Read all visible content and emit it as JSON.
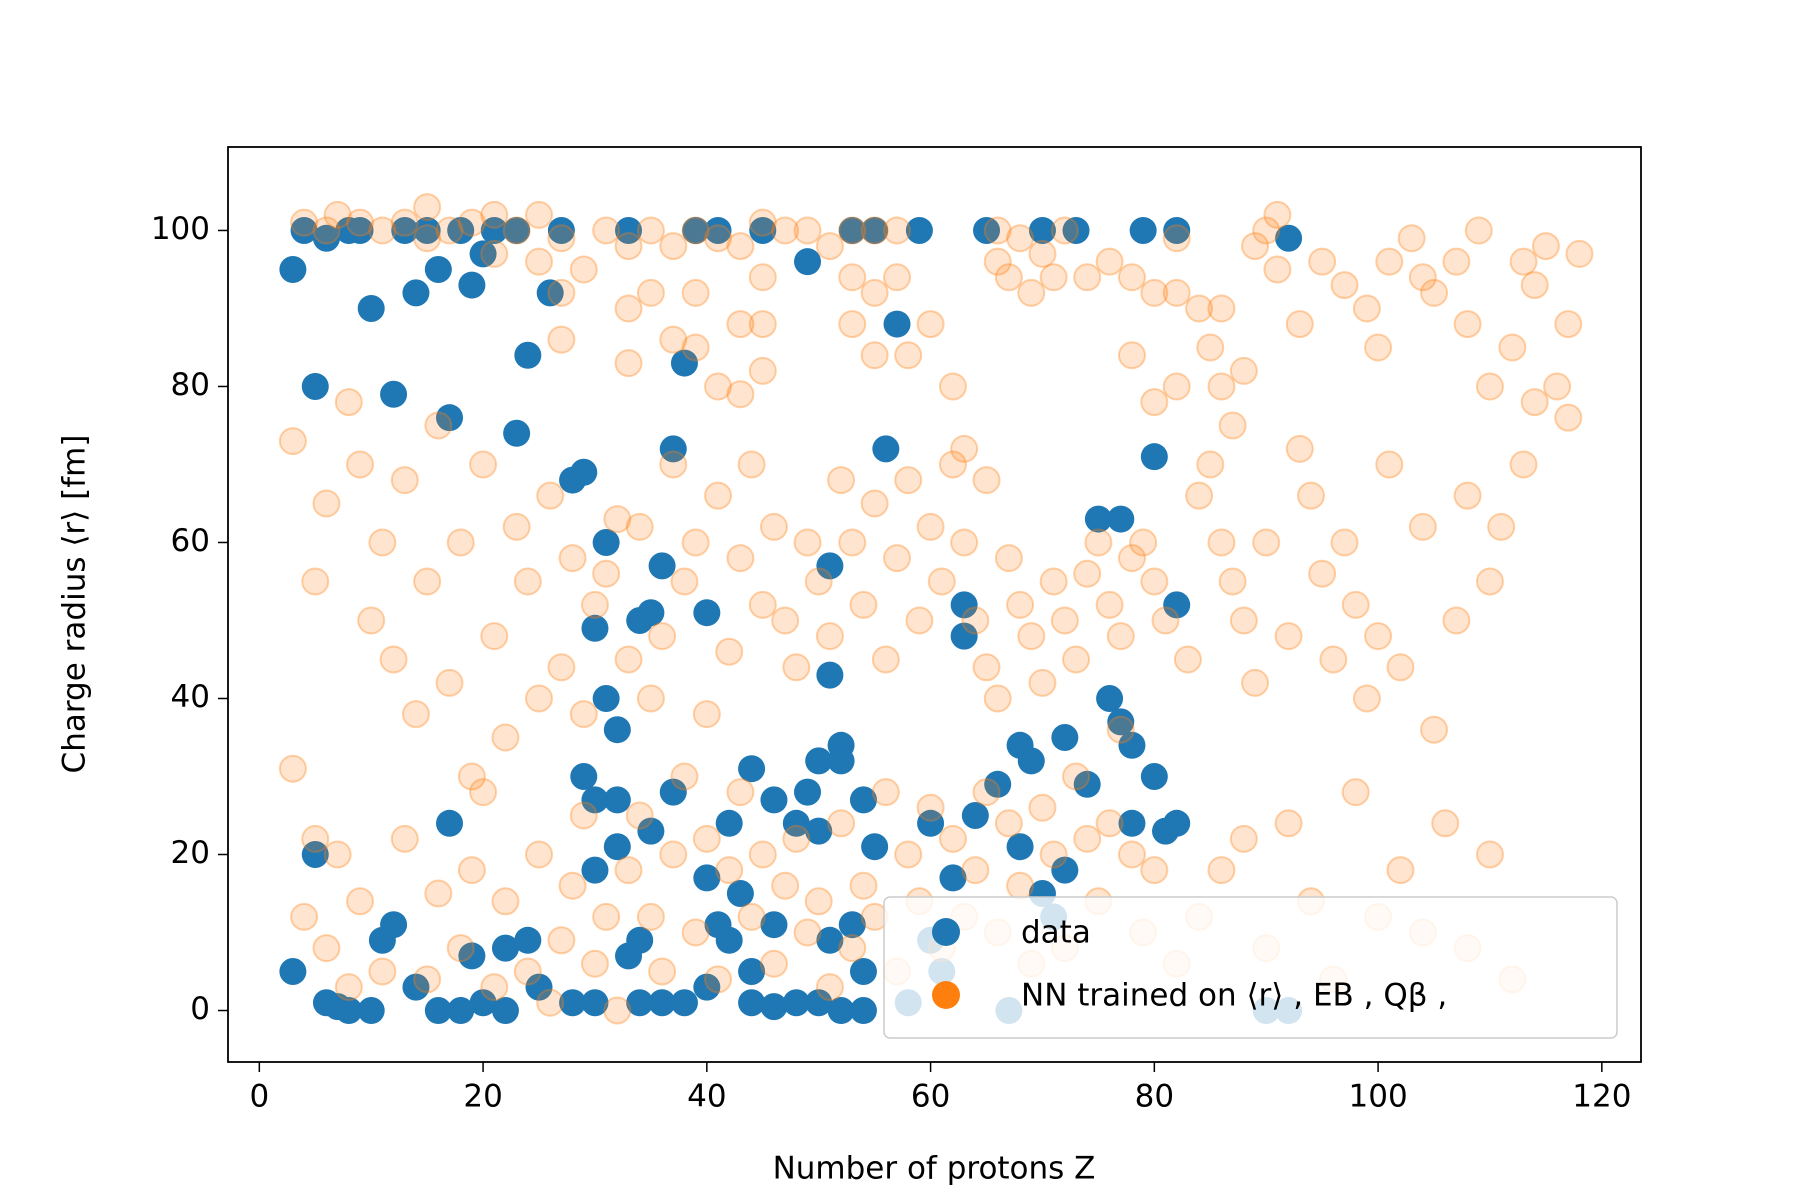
{
  "chart_data": {
    "type": "scatter",
    "xlabel": "Number of protons Z",
    "ylabel": "Charge radius ⟨r⟩ [fm]",
    "xlim": [
      -2.8,
      123.5
    ],
    "ylim": [
      -6.6,
      110.7
    ],
    "xticks": [
      0,
      20,
      40,
      60,
      80,
      100,
      120
    ],
    "yticks": [
      0,
      20,
      40,
      60,
      80,
      100
    ],
    "legend": "lower right",
    "series": [
      {
        "name": "data",
        "color": "#1f77b4",
        "x": [
          3,
          4,
          5,
          5,
          3,
          6,
          6,
          7,
          8,
          8,
          9,
          10,
          10,
          11,
          12,
          12,
          13,
          14,
          14,
          15,
          16,
          16,
          17,
          17,
          18,
          18,
          19,
          19,
          20,
          20,
          21,
          22,
          22,
          23,
          23,
          24,
          24,
          25,
          26,
          27,
          28,
          28,
          29,
          29,
          30,
          30,
          30,
          30,
          31,
          31,
          32,
          32,
          32,
          33,
          33,
          34,
          34,
          34,
          35,
          35,
          36,
          36,
          37,
          37,
          38,
          38,
          39,
          40,
          40,
          40,
          41,
          41,
          42,
          42,
          43,
          44,
          44,
          44,
          45,
          46,
          46,
          46,
          48,
          48,
          49,
          49,
          50,
          50,
          50,
          51,
          51,
          51,
          52,
          52,
          52,
          53,
          53,
          54,
          54,
          54,
          55,
          55,
          56,
          57,
          58,
          59,
          60,
          60,
          61,
          62,
          63,
          63,
          64,
          65,
          66,
          67,
          68,
          68,
          69,
          70,
          70,
          71,
          72,
          72,
          73,
          74,
          75,
          76,
          77,
          77,
          78,
          78,
          79,
          80,
          80,
          81,
          82,
          82,
          82,
          90,
          92,
          92
        ],
        "values": [
          95,
          100,
          80,
          20,
          5,
          1,
          99,
          0.5,
          0,
          100,
          100,
          90,
          0,
          9,
          79,
          11,
          100,
          92,
          3,
          100,
          95,
          0,
          76,
          24,
          100,
          0,
          93,
          7,
          97,
          1,
          100,
          0,
          8,
          74,
          100,
          84,
          9,
          3,
          92,
          100,
          68,
          1,
          69,
          30,
          49,
          27,
          18,
          1,
          60,
          40,
          36,
          27,
          21,
          100,
          7,
          50,
          9,
          1,
          51,
          23,
          57,
          1,
          72,
          28,
          83,
          1,
          100,
          51,
          17,
          3,
          100,
          11,
          24,
          9,
          15,
          1,
          31,
          5,
          100,
          27,
          11,
          0.5,
          1,
          24,
          96,
          28,
          32,
          23,
          1,
          57,
          43,
          9,
          34,
          32,
          0,
          100,
          11,
          27,
          5,
          0,
          100,
          21,
          72,
          88,
          1,
          100,
          24,
          9,
          5,
          17,
          52,
          48,
          25,
          100,
          29,
          0,
          34,
          21,
          32,
          100,
          15,
          12,
          35,
          18,
          100,
          29,
          63,
          40,
          63,
          37,
          34,
          24,
          100,
          30,
          71,
          23,
          52,
          24,
          100,
          0,
          99,
          0
        ]
      },
      {
        "name": "NN trained on ⟨r⟩ , EB , Qβ ,",
        "color": "#ff7f0e",
        "x": [
          4,
          6,
          7,
          9,
          11,
          13,
          15,
          15,
          17,
          19,
          21,
          21,
          23,
          25,
          25,
          27,
          27,
          27,
          29,
          31,
          33,
          33,
          33,
          35,
          35,
          37,
          37,
          39,
          39,
          39,
          41,
          41,
          43,
          43,
          43,
          45,
          45,
          45,
          45,
          47,
          49,
          51,
          53,
          53,
          53,
          55,
          55,
          55,
          57,
          57,
          58,
          60,
          62,
          63,
          65,
          66,
          66,
          67,
          68,
          69,
          70,
          71,
          72,
          74,
          76,
          78,
          78,
          80,
          80,
          82,
          82,
          82,
          84,
          85,
          86,
          86,
          87,
          88,
          89,
          90,
          91,
          91,
          93,
          95,
          97,
          99,
          100,
          101,
          103,
          104,
          105,
          107,
          108,
          109,
          110,
          112,
          113,
          114,
          115,
          117,
          118,
          3,
          5,
          6,
          8,
          9,
          10,
          11,
          12,
          13,
          14,
          15,
          16,
          17,
          18,
          19,
          20,
          21,
          22,
          23,
          24,
          25,
          26,
          27,
          28,
          29,
          30,
          31,
          32,
          33,
          34,
          35,
          36,
          37,
          38,
          39,
          40,
          41,
          42,
          43,
          44,
          45,
          46,
          47,
          48,
          49,
          50,
          51,
          52,
          53,
          54,
          55,
          56,
          57,
          58,
          59,
          60,
          61,
          62,
          63,
          64,
          65,
          66,
          67,
          68,
          69,
          70,
          71,
          72,
          73,
          74,
          75,
          76,
          77,
          78,
          79,
          80,
          81,
          83,
          84,
          85,
          86,
          87,
          88,
          89,
          90,
          92,
          93,
          94,
          95,
          96,
          97,
          98,
          99,
          100,
          101,
          102,
          104,
          105,
          107,
          108,
          110,
          111,
          113,
          114,
          116,
          117,
          3,
          4,
          5,
          6,
          7,
          8,
          9,
          11,
          13,
          15,
          16,
          18,
          19,
          20,
          21,
          22,
          24,
          25,
          26,
          27,
          28,
          29,
          30,
          31,
          32,
          33,
          34,
          35,
          36,
          37,
          38,
          39,
          40,
          41,
          42,
          43,
          44,
          45,
          46,
          47,
          48,
          49,
          50,
          51,
          52,
          53,
          54,
          55,
          56,
          57,
          58,
          59,
          60,
          61,
          62,
          63,
          64,
          65,
          66,
          67,
          68,
          69,
          70,
          71,
          72,
          73,
          74,
          75,
          76,
          77,
          78,
          79,
          80,
          82,
          84,
          86,
          88,
          90,
          92,
          94,
          96,
          98,
          100,
          102,
          104,
          106,
          108,
          110,
          112
        ],
        "values": [
          101,
          100,
          102,
          101,
          100,
          101,
          103,
          99,
          100,
          101,
          102,
          97,
          100,
          102,
          96,
          99,
          92,
          86,
          95,
          100,
          98,
          90,
          83,
          100,
          92,
          98,
          86,
          100,
          92,
          85,
          99,
          80,
          98,
          88,
          79,
          101,
          94,
          88,
          82,
          100,
          100,
          98,
          100,
          94,
          88,
          100,
          92,
          84,
          100,
          94,
          84,
          88,
          80,
          72,
          68,
          100,
          96,
          94,
          99,
          92,
          97,
          94,
          100,
          94,
          96,
          94,
          84,
          92,
          78,
          99,
          92,
          80,
          90,
          85,
          80,
          90,
          75,
          82,
          98,
          100,
          102,
          95,
          88,
          96,
          93,
          90,
          85,
          96,
          99,
          94,
          92,
          96,
          88,
          100,
          80,
          85,
          96,
          93,
          98,
          88,
          97,
          73,
          55,
          65,
          78,
          70,
          50,
          60,
          45,
          68,
          38,
          55,
          75,
          42,
          60,
          30,
          70,
          48,
          35,
          62,
          55,
          40,
          66,
          44,
          58,
          38,
          52,
          56,
          63,
          45,
          62,
          40,
          48,
          70,
          55,
          60,
          38,
          66,
          46,
          58,
          70,
          52,
          62,
          50,
          44,
          60,
          55,
          48,
          68,
          60,
          52,
          65,
          45,
          58,
          68,
          50,
          62,
          55,
          70,
          60,
          50,
          44,
          40,
          58,
          52,
          48,
          42,
          55,
          50,
          45,
          56,
          60,
          52,
          48,
          58,
          60,
          55,
          50,
          45,
          66,
          70,
          60,
          55,
          50,
          42,
          60,
          48,
          72,
          66,
          56,
          45,
          60,
          52,
          40,
          48,
          70,
          44,
          62,
          36,
          50,
          66,
          55,
          62,
          70,
          78,
          80,
          76,
          31,
          12,
          22,
          8,
          20,
          3,
          14,
          5,
          22,
          4,
          15,
          8,
          18,
          28,
          3,
          14,
          5,
          20,
          1,
          9,
          16,
          25,
          6,
          12,
          0,
          18,
          25,
          12,
          5,
          20,
          30,
          10,
          22,
          4,
          18,
          28,
          12,
          20,
          6,
          16,
          22,
          10,
          14,
          3,
          24,
          8,
          16,
          12,
          28,
          5,
          20,
          14,
          26,
          8,
          22,
          12,
          18,
          28,
          10,
          24,
          16,
          6,
          26,
          20,
          8,
          30,
          22,
          14,
          24,
          36,
          20,
          10,
          18,
          6,
          12,
          18,
          22,
          8,
          24,
          14,
          4,
          28,
          12,
          18,
          10,
          24,
          8,
          20,
          4
        ]
      }
    ]
  }
}
